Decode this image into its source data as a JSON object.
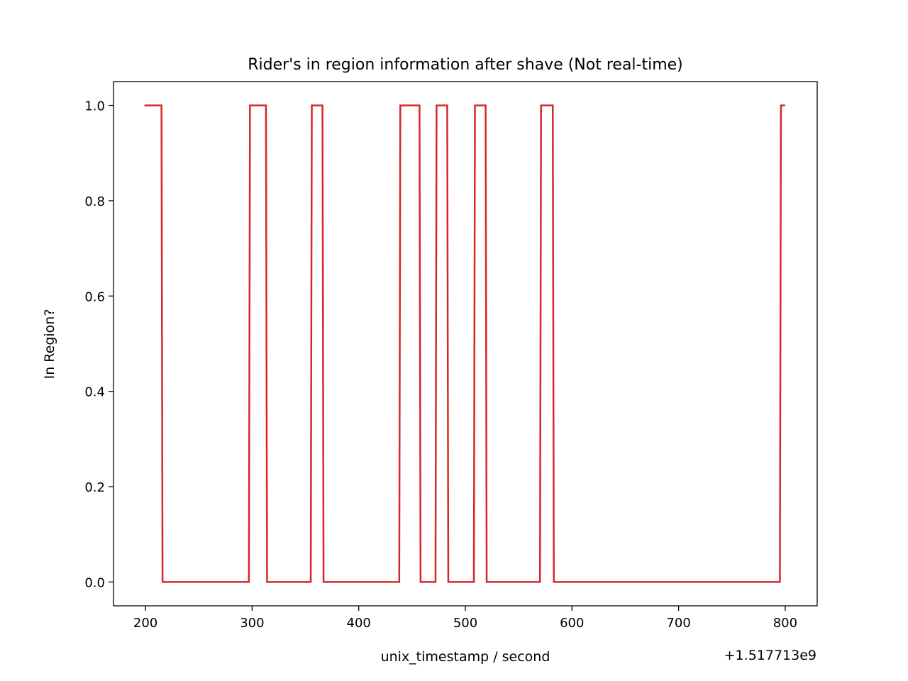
{
  "chart_data": {
    "type": "line",
    "title": "Rider's in region information after shave (Not real-time)",
    "xlabel": "unix_timestamp / second",
    "ylabel": "In Region?",
    "x_offset_label": "+1.517713e9",
    "xlim": [
      170,
      830
    ],
    "ylim": [
      -0.05,
      1.05
    ],
    "xticks": [
      200,
      300,
      400,
      500,
      600,
      700,
      800
    ],
    "xtick_labels": [
      "200",
      "300",
      "400",
      "500",
      "600",
      "700",
      "800"
    ],
    "yticks": [
      0.0,
      0.2,
      0.4,
      0.6,
      0.8,
      1.0
    ],
    "ytick_labels": [
      "0.0",
      "0.2",
      "0.4",
      "0.6",
      "0.8",
      "1.0"
    ],
    "grid": false,
    "series": [
      {
        "color": "#d62728",
        "x": [
          199,
          215,
          216,
          297,
          298,
          313,
          314,
          355,
          356,
          366,
          367,
          438,
          439,
          457,
          458,
          472,
          473,
          483,
          484,
          508,
          509,
          519,
          520,
          570,
          571,
          582,
          583,
          795,
          796,
          800
        ],
        "y": [
          1,
          1,
          0,
          0,
          1,
          1,
          0,
          0,
          1,
          1,
          0,
          0,
          1,
          1,
          0,
          0,
          1,
          1,
          0,
          0,
          1,
          1,
          0,
          0,
          1,
          1,
          0,
          0,
          1,
          1
        ]
      }
    ]
  }
}
